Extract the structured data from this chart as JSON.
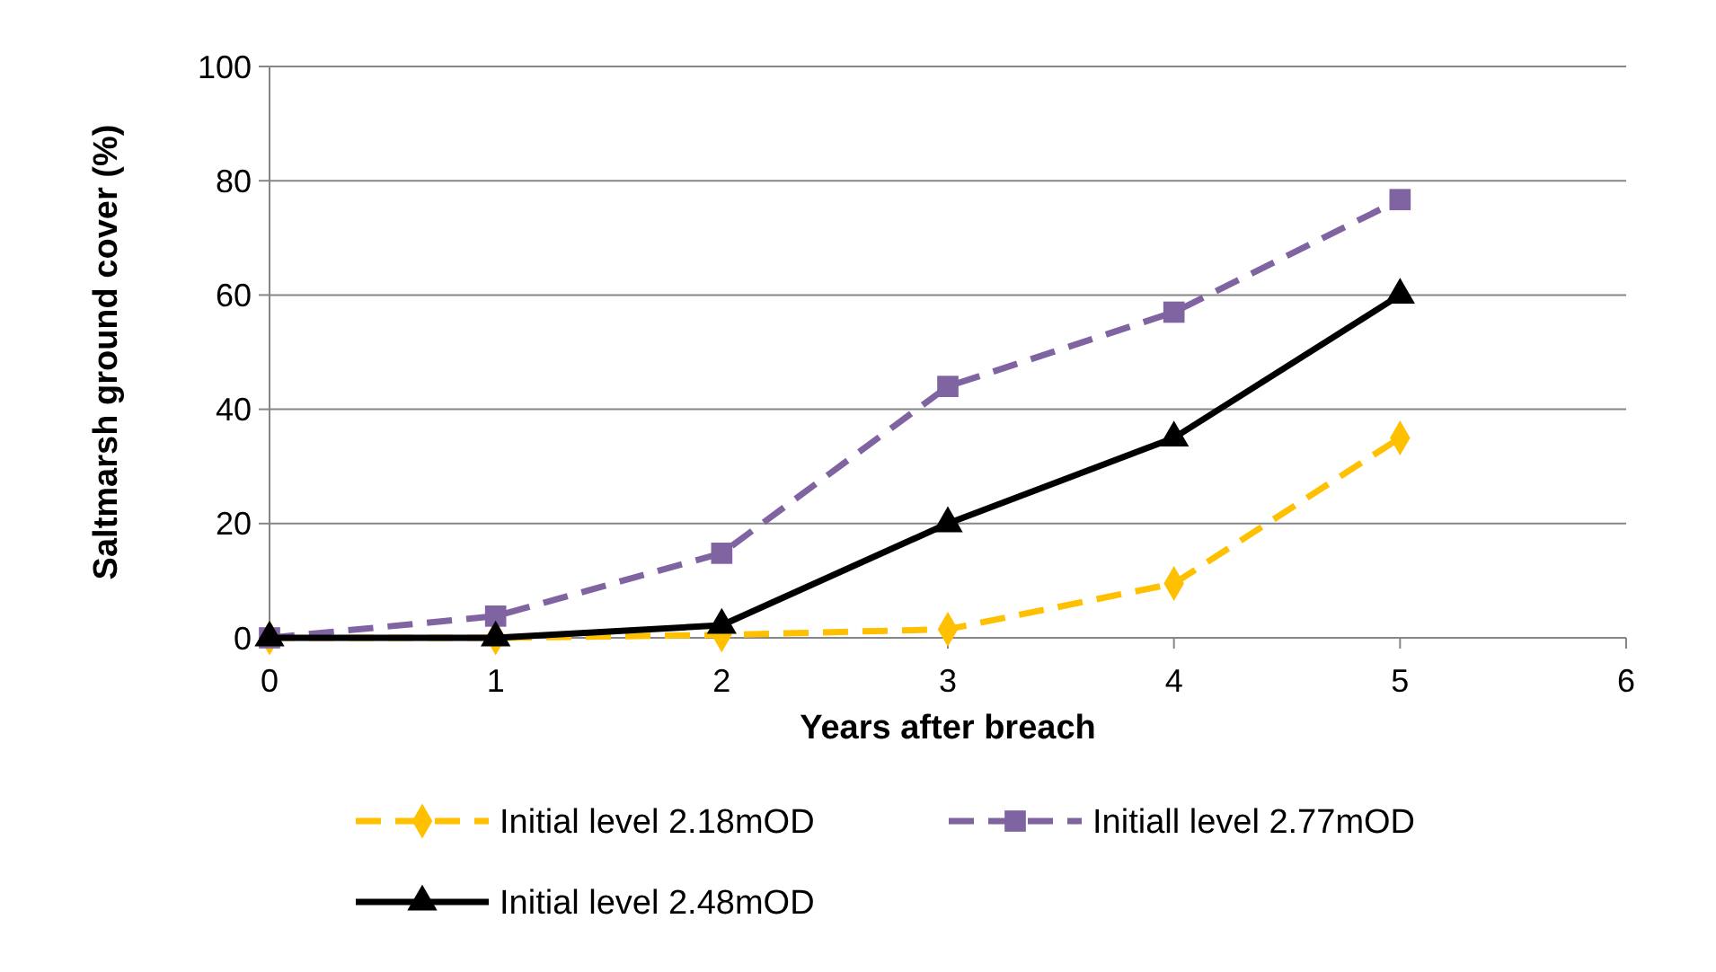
{
  "chart_data": {
    "type": "line",
    "xlabel": "Years after breach",
    "ylabel": "Saltmarsh ground cover (%)",
    "x": [
      0,
      1,
      2,
      3,
      4,
      5
    ],
    "xlim": [
      0,
      6
    ],
    "xticks": [
      0,
      1,
      2,
      3,
      4,
      5,
      6
    ],
    "ylim": [
      0,
      100
    ],
    "yticks": [
      0,
      20,
      40,
      60,
      80,
      100
    ],
    "grid": "y",
    "legend": "bottom",
    "series": [
      {
        "name": "Initial level 2.18mOD",
        "color": "#ffc000",
        "values": [
          0,
          0,
          0.5,
          1.5,
          9.5,
          35
        ],
        "marker": "diamond",
        "line_style": "dashed"
      },
      {
        "name": "Initiall level 2.77mOD",
        "color": "#8064a2",
        "values": [
          0,
          3.8,
          14.8,
          44,
          57,
          76.7
        ],
        "marker": "square",
        "line_style": "dashed"
      },
      {
        "name": "Initial level 2.48mOD",
        "color": "#000000",
        "values": [
          0,
          0,
          2.2,
          20,
          35,
          60
        ],
        "marker": "triangle",
        "line_style": "solid"
      }
    ]
  }
}
